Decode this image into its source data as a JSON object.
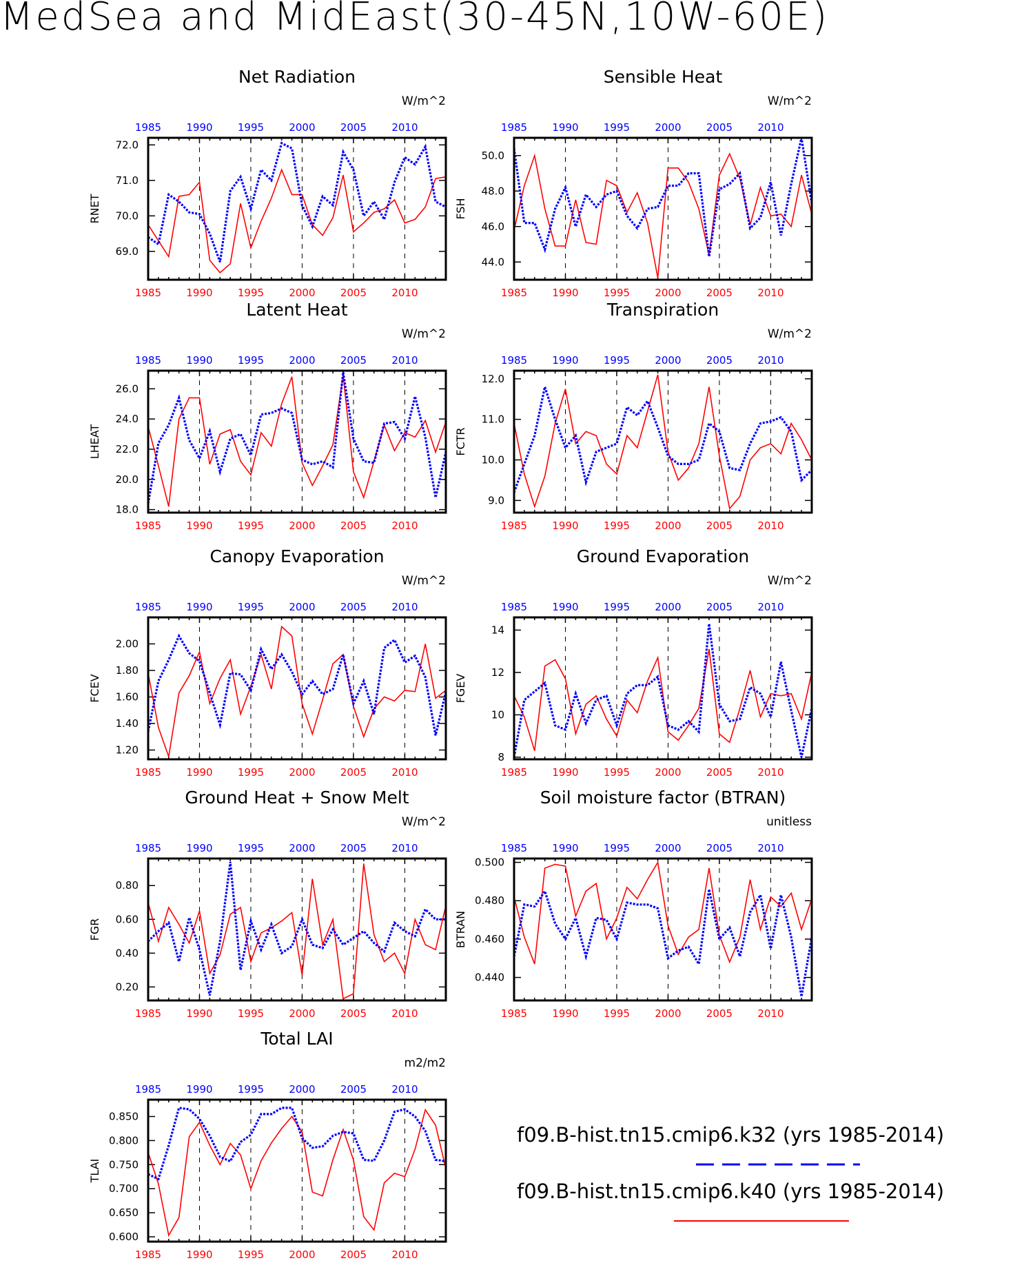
{
  "title": "MedSea and MidEast(30-45N,10W-60E)",
  "legend": [
    {
      "label": "f09.B-hist.tn15.cmip6.k32 (yrs 1985-2014)",
      "color": "#0000ff",
      "style": "dashed"
    },
    {
      "label": "f09.B-hist.tn15.cmip6.k40 (yrs 1985-2014)",
      "color": "#ff0000",
      "style": "solid"
    }
  ],
  "colors": {
    "series_a": "#0000ff",
    "series_b": "#ff0000",
    "frame": "#000000"
  },
  "chart_data": [
    {
      "type": "line",
      "title": "Net Radiation",
      "ylabel": "RNET",
      "units": "W/m^2",
      "yticks": [
        69.0,
        70.0,
        71.0,
        72.0
      ],
      "ytick_decimals": 1,
      "ylim": [
        68.2,
        72.2
      ],
      "x_start": 1985,
      "xlim": [
        1985,
        2014
      ],
      "xticks": [
        1985,
        1990,
        1995,
        2000,
        2005,
        2010
      ],
      "series": [
        {
          "values": [
            69.4,
            69.2,
            70.6,
            70.4,
            70.1,
            70.05,
            69.5,
            68.7,
            70.7,
            71.1,
            70.2,
            71.3,
            71.0,
            72.05,
            71.9,
            70.3,
            69.7,
            70.55,
            70.3,
            71.8,
            71.3,
            70.0,
            70.4,
            69.9,
            70.95,
            71.65,
            71.45,
            71.95,
            70.4,
            70.25
          ]
        },
        {
          "values": [
            69.75,
            69.3,
            68.85,
            70.55,
            70.6,
            70.95,
            68.75,
            68.4,
            68.65,
            70.35,
            69.1,
            69.85,
            70.5,
            71.3,
            70.6,
            70.6,
            69.75,
            69.45,
            69.95,
            71.15,
            69.55,
            69.8,
            70.1,
            70.2,
            70.45,
            69.8,
            69.9,
            70.25,
            71.05,
            71.1
          ]
        }
      ]
    },
    {
      "type": "line",
      "title": "Sensible Heat",
      "ylabel": "FSH",
      "units": "W/m^2",
      "yticks": [
        44.0,
        46.0,
        48.0,
        50.0
      ],
      "ytick_decimals": 1,
      "ylim": [
        43.0,
        51.0
      ],
      "x_start": 1985,
      "xlim": [
        1985,
        2014
      ],
      "xticks": [
        1985,
        1990,
        1995,
        2000,
        2005,
        2010
      ],
      "series": [
        {
          "values": [
            50.4,
            46.2,
            46.2,
            44.7,
            47.0,
            48.2,
            46.0,
            47.8,
            47.1,
            47.8,
            48.0,
            46.6,
            45.9,
            47.0,
            47.1,
            48.3,
            48.3,
            49.0,
            49.0,
            44.3,
            48.1,
            48.4,
            49.0,
            45.9,
            46.5,
            48.5,
            45.5,
            48.4,
            51.0,
            47.3
          ]
        },
        {
          "values": [
            45.8,
            48.3,
            50.0,
            47.0,
            44.9,
            44.9,
            47.5,
            45.1,
            45.0,
            48.6,
            48.3,
            46.8,
            47.9,
            46.2,
            43.1,
            49.3,
            49.3,
            48.5,
            47.0,
            44.4,
            48.9,
            50.1,
            48.7,
            46.1,
            48.2,
            46.6,
            46.7,
            46.0,
            48.9,
            46.7
          ]
        }
      ]
    },
    {
      "type": "line",
      "title": "Latent Heat",
      "ylabel": "LHEAT",
      "units": "W/m^2",
      "yticks": [
        18.0,
        20.0,
        22.0,
        24.0,
        26.0
      ],
      "ytick_decimals": 1,
      "ylim": [
        17.8,
        27.2
      ],
      "x_start": 1985,
      "xlim": [
        1985,
        2014
      ],
      "xticks": [
        1985,
        1990,
        1995,
        2000,
        2005,
        2010
      ],
      "series": [
        {
          "values": [
            18.4,
            22.4,
            23.6,
            25.4,
            22.6,
            21.4,
            23.2,
            20.5,
            22.7,
            23.0,
            21.6,
            24.3,
            24.4,
            24.7,
            24.4,
            21.3,
            21.0,
            21.2,
            20.8,
            27.1,
            22.7,
            21.2,
            21.1,
            23.7,
            23.8,
            22.7,
            25.5,
            22.8,
            18.8,
            21.8
          ]
        },
        {
          "values": [
            23.5,
            20.9,
            18.2,
            24.0,
            25.4,
            25.4,
            21.0,
            23.0,
            23.3,
            21.2,
            20.3,
            23.1,
            22.2,
            25.0,
            26.8,
            21.1,
            19.6,
            20.9,
            22.3,
            26.9,
            20.5,
            18.8,
            21.2,
            23.6,
            21.9,
            23.1,
            22.8,
            23.9,
            21.8,
            23.8
          ]
        }
      ]
    },
    {
      "type": "line",
      "title": "Transpiration",
      "ylabel": "FCTR",
      "units": "W/m^2",
      "yticks": [
        9.0,
        10.0,
        11.0,
        12.0
      ],
      "ytick_decimals": 1,
      "ylim": [
        8.7,
        12.2
      ],
      "x_start": 1985,
      "xlim": [
        1985,
        2014
      ],
      "xticks": [
        1985,
        1990,
        1995,
        2000,
        2005,
        2010
      ],
      "series": [
        {
          "values": [
            9.2,
            9.9,
            10.6,
            11.8,
            11.0,
            10.3,
            10.6,
            9.45,
            10.2,
            10.3,
            10.4,
            11.3,
            11.1,
            11.45,
            10.8,
            10.1,
            9.9,
            9.9,
            10.0,
            10.9,
            10.7,
            9.8,
            9.75,
            10.4,
            10.9,
            10.95,
            11.05,
            10.7,
            9.5,
            9.75
          ]
        },
        {
          "values": [
            10.9,
            9.65,
            8.85,
            9.6,
            10.9,
            11.75,
            10.4,
            10.7,
            10.6,
            9.9,
            9.65,
            10.6,
            10.3,
            11.2,
            12.1,
            10.2,
            9.5,
            9.8,
            10.4,
            11.8,
            10.1,
            8.8,
            9.1,
            10.0,
            10.3,
            10.4,
            10.15,
            10.9,
            10.5,
            10.0
          ]
        }
      ]
    },
    {
      "type": "line",
      "title": "Canopy Evaporation",
      "ylabel": "FCEV",
      "units": "W/m^2",
      "yticks": [
        1.2,
        1.4,
        1.6,
        1.8,
        2.0
      ],
      "ytick_decimals": 2,
      "ylim": [
        1.13,
        2.2
      ],
      "x_start": 1985,
      "xlim": [
        1985,
        2014
      ],
      "xticks": [
        1985,
        1990,
        1995,
        2000,
        2005,
        2010
      ],
      "series": [
        {
          "values": [
            1.34,
            1.72,
            1.88,
            2.06,
            1.93,
            1.87,
            1.63,
            1.39,
            1.78,
            1.77,
            1.65,
            1.96,
            1.81,
            1.92,
            1.79,
            1.62,
            1.72,
            1.62,
            1.66,
            1.92,
            1.55,
            1.72,
            1.47,
            1.97,
            2.03,
            1.86,
            1.91,
            1.75,
            1.31,
            1.64
          ]
        },
        {
          "values": [
            1.78,
            1.37,
            1.15,
            1.63,
            1.76,
            1.94,
            1.55,
            1.74,
            1.88,
            1.47,
            1.68,
            1.92,
            1.66,
            2.13,
            2.06,
            1.55,
            1.32,
            1.58,
            1.85,
            1.92,
            1.53,
            1.3,
            1.51,
            1.6,
            1.57,
            1.65,
            1.64,
            2.0,
            1.59,
            1.65
          ]
        }
      ]
    },
    {
      "type": "line",
      "title": "Ground Evaporation",
      "ylabel": "FGEV",
      "units": "W/m^2",
      "yticks": [
        8,
        10,
        12,
        14
      ],
      "ytick_decimals": 0,
      "ylim": [
        7.9,
        14.6
      ],
      "x_start": 1985,
      "xlim": [
        1985,
        2014
      ],
      "xticks": [
        1985,
        1990,
        1995,
        2000,
        2005,
        2010
      ],
      "series": [
        {
          "values": [
            8.0,
            10.7,
            11.1,
            11.5,
            9.5,
            9.3,
            11.0,
            9.6,
            10.7,
            10.9,
            9.5,
            11.0,
            11.4,
            11.4,
            11.8,
            9.5,
            9.3,
            9.7,
            9.2,
            14.3,
            10.5,
            9.7,
            9.8,
            11.3,
            11.0,
            9.9,
            12.5,
            10.2,
            8.0,
            10.3
          ]
        },
        {
          "values": [
            10.9,
            9.9,
            8.3,
            12.3,
            12.6,
            11.7,
            9.1,
            10.5,
            10.9,
            9.8,
            9.0,
            10.7,
            10.1,
            11.6,
            12.7,
            9.2,
            8.8,
            9.5,
            10.3,
            13.1,
            9.1,
            8.7,
            10.3,
            12.1,
            9.9,
            11.0,
            10.9,
            11.0,
            9.8,
            12.0
          ]
        }
      ]
    },
    {
      "type": "line",
      "title": "Ground Heat + Snow Melt",
      "ylabel": "FGR",
      "units": "W/m^2",
      "yticks": [
        0.2,
        0.4,
        0.6,
        0.8
      ],
      "ytick_decimals": 2,
      "ylim": [
        0.12,
        0.96
      ],
      "x_start": 1985,
      "xlim": [
        1985,
        2014
      ],
      "xticks": [
        1985,
        1990,
        1995,
        2000,
        2005,
        2010
      ],
      "series": [
        {
          "values": [
            0.47,
            0.53,
            0.58,
            0.35,
            0.61,
            0.42,
            0.15,
            0.47,
            0.94,
            0.3,
            0.59,
            0.42,
            0.57,
            0.4,
            0.44,
            0.6,
            0.45,
            0.43,
            0.54,
            0.45,
            0.49,
            0.53,
            0.46,
            0.41,
            0.58,
            0.53,
            0.5,
            0.66,
            0.6,
            0.6
          ]
        },
        {
          "values": [
            0.7,
            0.47,
            0.67,
            0.57,
            0.46,
            0.65,
            0.28,
            0.39,
            0.63,
            0.67,
            0.35,
            0.52,
            0.55,
            0.59,
            0.64,
            0.27,
            0.84,
            0.45,
            0.6,
            0.13,
            0.16,
            0.93,
            0.51,
            0.35,
            0.4,
            0.28,
            0.6,
            0.45,
            0.42,
            0.68
          ]
        }
      ]
    },
    {
      "type": "line",
      "title": "Soil moisture factor (BTRAN)",
      "ylabel": "BTRAN",
      "units": "unitless",
      "yticks": [
        0.44,
        0.46,
        0.48,
        0.5
      ],
      "ytick_decimals": 3,
      "ylim": [
        0.428,
        0.502
      ],
      "x_start": 1985,
      "xlim": [
        1985,
        2014
      ],
      "xticks": [
        1985,
        1990,
        1995,
        2000,
        2005,
        2010
      ],
      "series": [
        {
          "values": [
            0.451,
            0.478,
            0.477,
            0.485,
            0.468,
            0.46,
            0.471,
            0.451,
            0.471,
            0.47,
            0.46,
            0.479,
            0.478,
            0.478,
            0.476,
            0.45,
            0.454,
            0.456,
            0.447,
            0.486,
            0.46,
            0.466,
            0.451,
            0.474,
            0.483,
            0.455,
            0.483,
            0.461,
            0.43,
            0.461
          ]
        },
        {
          "values": [
            0.482,
            0.461,
            0.447,
            0.497,
            0.499,
            0.498,
            0.472,
            0.485,
            0.489,
            0.46,
            0.471,
            0.487,
            0.481,
            0.491,
            0.5,
            0.467,
            0.452,
            0.461,
            0.465,
            0.497,
            0.462,
            0.448,
            0.461,
            0.491,
            0.465,
            0.482,
            0.477,
            0.484,
            0.465,
            0.481
          ]
        }
      ]
    },
    {
      "type": "line",
      "title": "Total LAI",
      "ylabel": "TLAI",
      "units": "m2/m2",
      "yticks": [
        0.6,
        0.65,
        0.7,
        0.75,
        0.8,
        0.85
      ],
      "ytick_decimals": 3,
      "ylim": [
        0.59,
        0.885
      ],
      "x_start": 1985,
      "xlim": [
        1985,
        2014
      ],
      "xticks": [
        1985,
        1990,
        1995,
        2000,
        2005,
        2010
      ],
      "series": [
        {
          "values": [
            0.73,
            0.72,
            0.79,
            0.868,
            0.865,
            0.845,
            0.81,
            0.766,
            0.757,
            0.797,
            0.812,
            0.855,
            0.855,
            0.868,
            0.868,
            0.805,
            0.785,
            0.788,
            0.81,
            0.818,
            0.815,
            0.76,
            0.758,
            0.8,
            0.86,
            0.865,
            0.85,
            0.82,
            0.76,
            0.757
          ]
        },
        {
          "values": [
            0.775,
            0.71,
            0.603,
            0.64,
            0.808,
            0.838,
            0.79,
            0.75,
            0.794,
            0.77,
            0.7,
            0.758,
            0.795,
            0.825,
            0.85,
            0.818,
            0.693,
            0.685,
            0.76,
            0.823,
            0.76,
            0.642,
            0.614,
            0.712,
            0.732,
            0.725,
            0.782,
            0.864,
            0.832,
            0.742
          ]
        }
      ]
    }
  ]
}
